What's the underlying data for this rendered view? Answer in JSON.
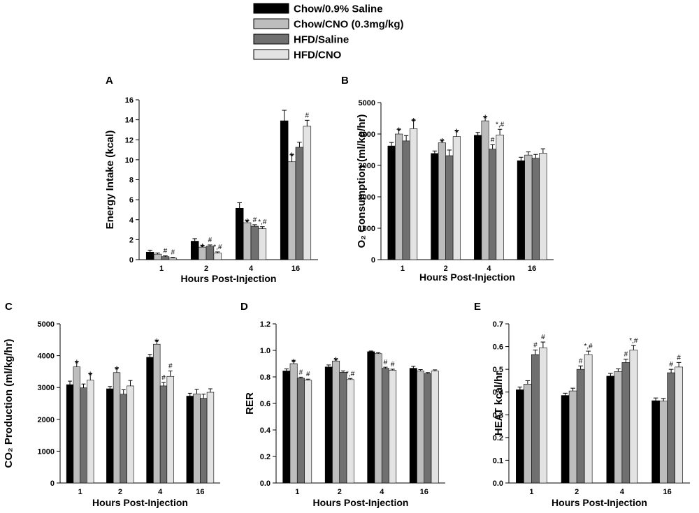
{
  "legend": [
    {
      "label": "Chow/0.9% Saline",
      "color": "#000000"
    },
    {
      "label": "Chow/CNO (0.3mg/kg)",
      "color": "#bdbdbd"
    },
    {
      "label": "HFD/Saline",
      "color": "#707070"
    },
    {
      "label": "HFD/CNO",
      "color": "#e3e3e3"
    }
  ],
  "chart_data": [
    {
      "panel": "A",
      "type": "bar",
      "ylabel": "Energy Intake (kcal)",
      "xlabel": "Hours Post-Injection",
      "categories": [
        "1",
        "2",
        "4",
        "16"
      ],
      "ylim": [
        0,
        16
      ],
      "yticks": [
        0,
        2,
        4,
        6,
        8,
        10,
        12,
        14,
        16
      ],
      "series": [
        {
          "name": "Chow/0.9% Saline",
          "values": [
            0.75,
            1.85,
            5.15,
            13.9
          ],
          "errors": [
            0.2,
            0.25,
            0.55,
            1.05
          ]
        },
        {
          "name": "Chow/CNO (0.3mg/kg)",
          "values": [
            0.55,
            1.25,
            3.7,
            9.8
          ],
          "errors": [
            0.12,
            0.15,
            0.2,
            0.7
          ]
        },
        {
          "name": "HFD/Saline",
          "values": [
            0.3,
            1.35,
            3.35,
            11.25
          ],
          "errors": [
            0.08,
            0.12,
            0.15,
            0.5
          ]
        },
        {
          "name": "HFD/CNO",
          "values": [
            0.15,
            0.65,
            3.1,
            13.35
          ],
          "errors": [
            0.08,
            0.12,
            0.2,
            0.6
          ]
        }
      ],
      "annotations": [
        {
          "category": "1",
          "series": "HFD/Saline",
          "text": "#"
        },
        {
          "category": "1",
          "series": "HFD/CNO",
          "text": "#"
        },
        {
          "category": "2",
          "series": "Chow/CNO (0.3mg/kg)",
          "text": "*"
        },
        {
          "category": "2",
          "series": "HFD/Saline",
          "text": "#"
        },
        {
          "category": "2",
          "series": "HFD/CNO",
          "text": "*,#"
        },
        {
          "category": "4",
          "series": "Chow/CNO (0.3mg/kg)",
          "text": "*"
        },
        {
          "category": "4",
          "series": "HFD/Saline",
          "text": "#"
        },
        {
          "category": "4",
          "series": "HFD/CNO",
          "text": "*,#"
        },
        {
          "category": "16",
          "series": "Chow/CNO (0.3mg/kg)",
          "text": "*"
        },
        {
          "category": "16",
          "series": "HFD/CNO",
          "text": "#"
        }
      ]
    },
    {
      "panel": "B",
      "type": "bar",
      "ylabel": "O₂ Consumption (ml/kg/hr)",
      "xlabel": "Hours Post-Injection",
      "categories": [
        "1",
        "2",
        "4",
        "16"
      ],
      "ylim": [
        0,
        5000
      ],
      "yticks": [
        0,
        1000,
        2000,
        3000,
        4000,
        5000
      ],
      "series": [
        {
          "name": "Chow/0.9% Saline",
          "values": [
            3620,
            3380,
            3960,
            3150
          ],
          "errors": [
            110,
            80,
            90,
            110
          ]
        },
        {
          "name": "Chow/CNO (0.3mg/kg)",
          "values": [
            4000,
            3720,
            4420,
            3330
          ],
          "errors": [
            150,
            80,
            130,
            100
          ]
        },
        {
          "name": "HFD/Saline",
          "values": [
            3780,
            3310,
            3520,
            3230
          ],
          "errors": [
            170,
            180,
            140,
            120
          ]
        },
        {
          "name": "HFD/CNO",
          "values": [
            4170,
            3920,
            3970,
            3390
          ],
          "errors": [
            270,
            180,
            180,
            140
          ]
        }
      ],
      "annotations": [
        {
          "category": "1",
          "series": "Chow/CNO (0.3mg/kg)",
          "text": "*"
        },
        {
          "category": "1",
          "series": "HFD/CNO",
          "text": "*"
        },
        {
          "category": "2",
          "series": "Chow/CNO (0.3mg/kg)",
          "text": "*"
        },
        {
          "category": "2",
          "series": "HFD/CNO",
          "text": "*"
        },
        {
          "category": "4",
          "series": "Chow/CNO (0.3mg/kg)",
          "text": "*"
        },
        {
          "category": "4",
          "series": "HFD/Saline",
          "text": "#"
        },
        {
          "category": "4",
          "series": "HFD/CNO",
          "text": "*,#"
        }
      ]
    },
    {
      "panel": "C",
      "type": "bar",
      "ylabel": "CO₂ Production (ml/kg/hr)",
      "xlabel": "Hours Post-Injection",
      "categories": [
        "1",
        "2",
        "4",
        "16"
      ],
      "ylim": [
        0,
        5000
      ],
      "yticks": [
        0,
        1000,
        2000,
        3000,
        4000,
        5000
      ],
      "series": [
        {
          "name": "Chow/0.9% Saline",
          "values": [
            3090,
            2960,
            3950,
            2730
          ],
          "errors": [
            110,
            70,
            90,
            90
          ]
        },
        {
          "name": "Chow/CNO (0.3mg/kg)",
          "values": [
            3650,
            3470,
            4360,
            2800
          ],
          "errors": [
            160,
            140,
            110,
            140
          ]
        },
        {
          "name": "HFD/Saline",
          "values": [
            2990,
            2790,
            3050,
            2660
          ],
          "errors": [
            120,
            140,
            110,
            130
          ]
        },
        {
          "name": "HFD/CNO",
          "values": [
            3230,
            3050,
            3350,
            2850
          ],
          "errors": [
            200,
            170,
            170,
            110
          ]
        }
      ],
      "annotations": [
        {
          "category": "1",
          "series": "Chow/CNO (0.3mg/kg)",
          "text": "*"
        },
        {
          "category": "1",
          "series": "HFD/CNO",
          "text": "*"
        },
        {
          "category": "2",
          "series": "Chow/CNO (0.3mg/kg)",
          "text": "*"
        },
        {
          "category": "4",
          "series": "Chow/CNO (0.3mg/kg)",
          "text": "*"
        },
        {
          "category": "4",
          "series": "HFD/Saline",
          "text": "#"
        },
        {
          "category": "4",
          "series": "HFD/CNO",
          "text": "#"
        }
      ]
    },
    {
      "panel": "D",
      "type": "bar",
      "ylabel": "RER",
      "xlabel": "Hours Post-Injection",
      "categories": [
        "1",
        "2",
        "4",
        "16"
      ],
      "ylim": [
        0,
        1.2
      ],
      "yticks": [
        0.0,
        0.2,
        0.4,
        0.6,
        0.8,
        1.0,
        1.2
      ],
      "series": [
        {
          "name": "Chow/0.9% Saline",
          "values": [
            0.845,
            0.875,
            0.99,
            0.865
          ],
          "errors": [
            0.015,
            0.015,
            0.005,
            0.015
          ]
        },
        {
          "name": "Chow/CNO (0.3mg/kg)",
          "values": [
            0.9,
            0.92,
            0.975,
            0.845
          ],
          "errors": [
            0.02,
            0.015,
            0.008,
            0.01
          ]
        },
        {
          "name": "HFD/Saline",
          "values": [
            0.79,
            0.835,
            0.865,
            0.825
          ],
          "errors": [
            0.008,
            0.01,
            0.008,
            0.008
          ]
        },
        {
          "name": "HFD/CNO",
          "values": [
            0.775,
            0.78,
            0.85,
            0.845
          ],
          "errors": [
            0.008,
            0.008,
            0.008,
            0.008
          ]
        }
      ],
      "annotations": [
        {
          "category": "1",
          "series": "Chow/CNO (0.3mg/kg)",
          "text": "*"
        },
        {
          "category": "1",
          "series": "HFD/Saline",
          "text": "#"
        },
        {
          "category": "1",
          "series": "HFD/CNO",
          "text": "#"
        },
        {
          "category": "2",
          "series": "Chow/CNO (0.3mg/kg)",
          "text": "*"
        },
        {
          "category": "2",
          "series": "HFD/CNO",
          "text": "*,#"
        },
        {
          "category": "4",
          "series": "HFD/Saline",
          "text": "#"
        },
        {
          "category": "4",
          "series": "HFD/CNO",
          "text": "#"
        }
      ]
    },
    {
      "panel": "E",
      "type": "bar",
      "ylabel": "HEAT kcal/hr",
      "xlabel": "Hours Post-Injection",
      "categories": [
        "1",
        "2",
        "4",
        "16"
      ],
      "ylim": [
        0,
        0.7
      ],
      "yticks": [
        0.0,
        0.1,
        0.2,
        0.3,
        0.4,
        0.5,
        0.6,
        0.7
      ],
      "series": [
        {
          "name": "Chow/0.9% Saline",
          "values": [
            0.41,
            0.385,
            0.47,
            0.362
          ],
          "errors": [
            0.012,
            0.01,
            0.012,
            0.012
          ]
        },
        {
          "name": "Chow/CNO (0.3mg/kg)",
          "values": [
            0.435,
            0.405,
            0.49,
            0.36
          ],
          "errors": [
            0.015,
            0.012,
            0.012,
            0.012
          ]
        },
        {
          "name": "HFD/Saline",
          "values": [
            0.565,
            0.5,
            0.53,
            0.485
          ],
          "errors": [
            0.02,
            0.015,
            0.015,
            0.015
          ]
        },
        {
          "name": "HFD/CNO",
          "values": [
            0.595,
            0.565,
            0.585,
            0.51
          ],
          "errors": [
            0.025,
            0.015,
            0.02,
            0.02
          ]
        }
      ],
      "annotations": [
        {
          "category": "1",
          "series": "HFD/Saline",
          "text": "#"
        },
        {
          "category": "1",
          "series": "HFD/CNO",
          "text": "#"
        },
        {
          "category": "2",
          "series": "HFD/Saline",
          "text": "#"
        },
        {
          "category": "2",
          "series": "HFD/CNO",
          "text": "*,#"
        },
        {
          "category": "4",
          "series": "HFD/Saline",
          "text": "#"
        },
        {
          "category": "4",
          "series": "HFD/CNO",
          "text": "*,#"
        },
        {
          "category": "16",
          "series": "HFD/Saline",
          "text": "#"
        },
        {
          "category": "16",
          "series": "HFD/CNO",
          "text": "#"
        }
      ]
    }
  ]
}
